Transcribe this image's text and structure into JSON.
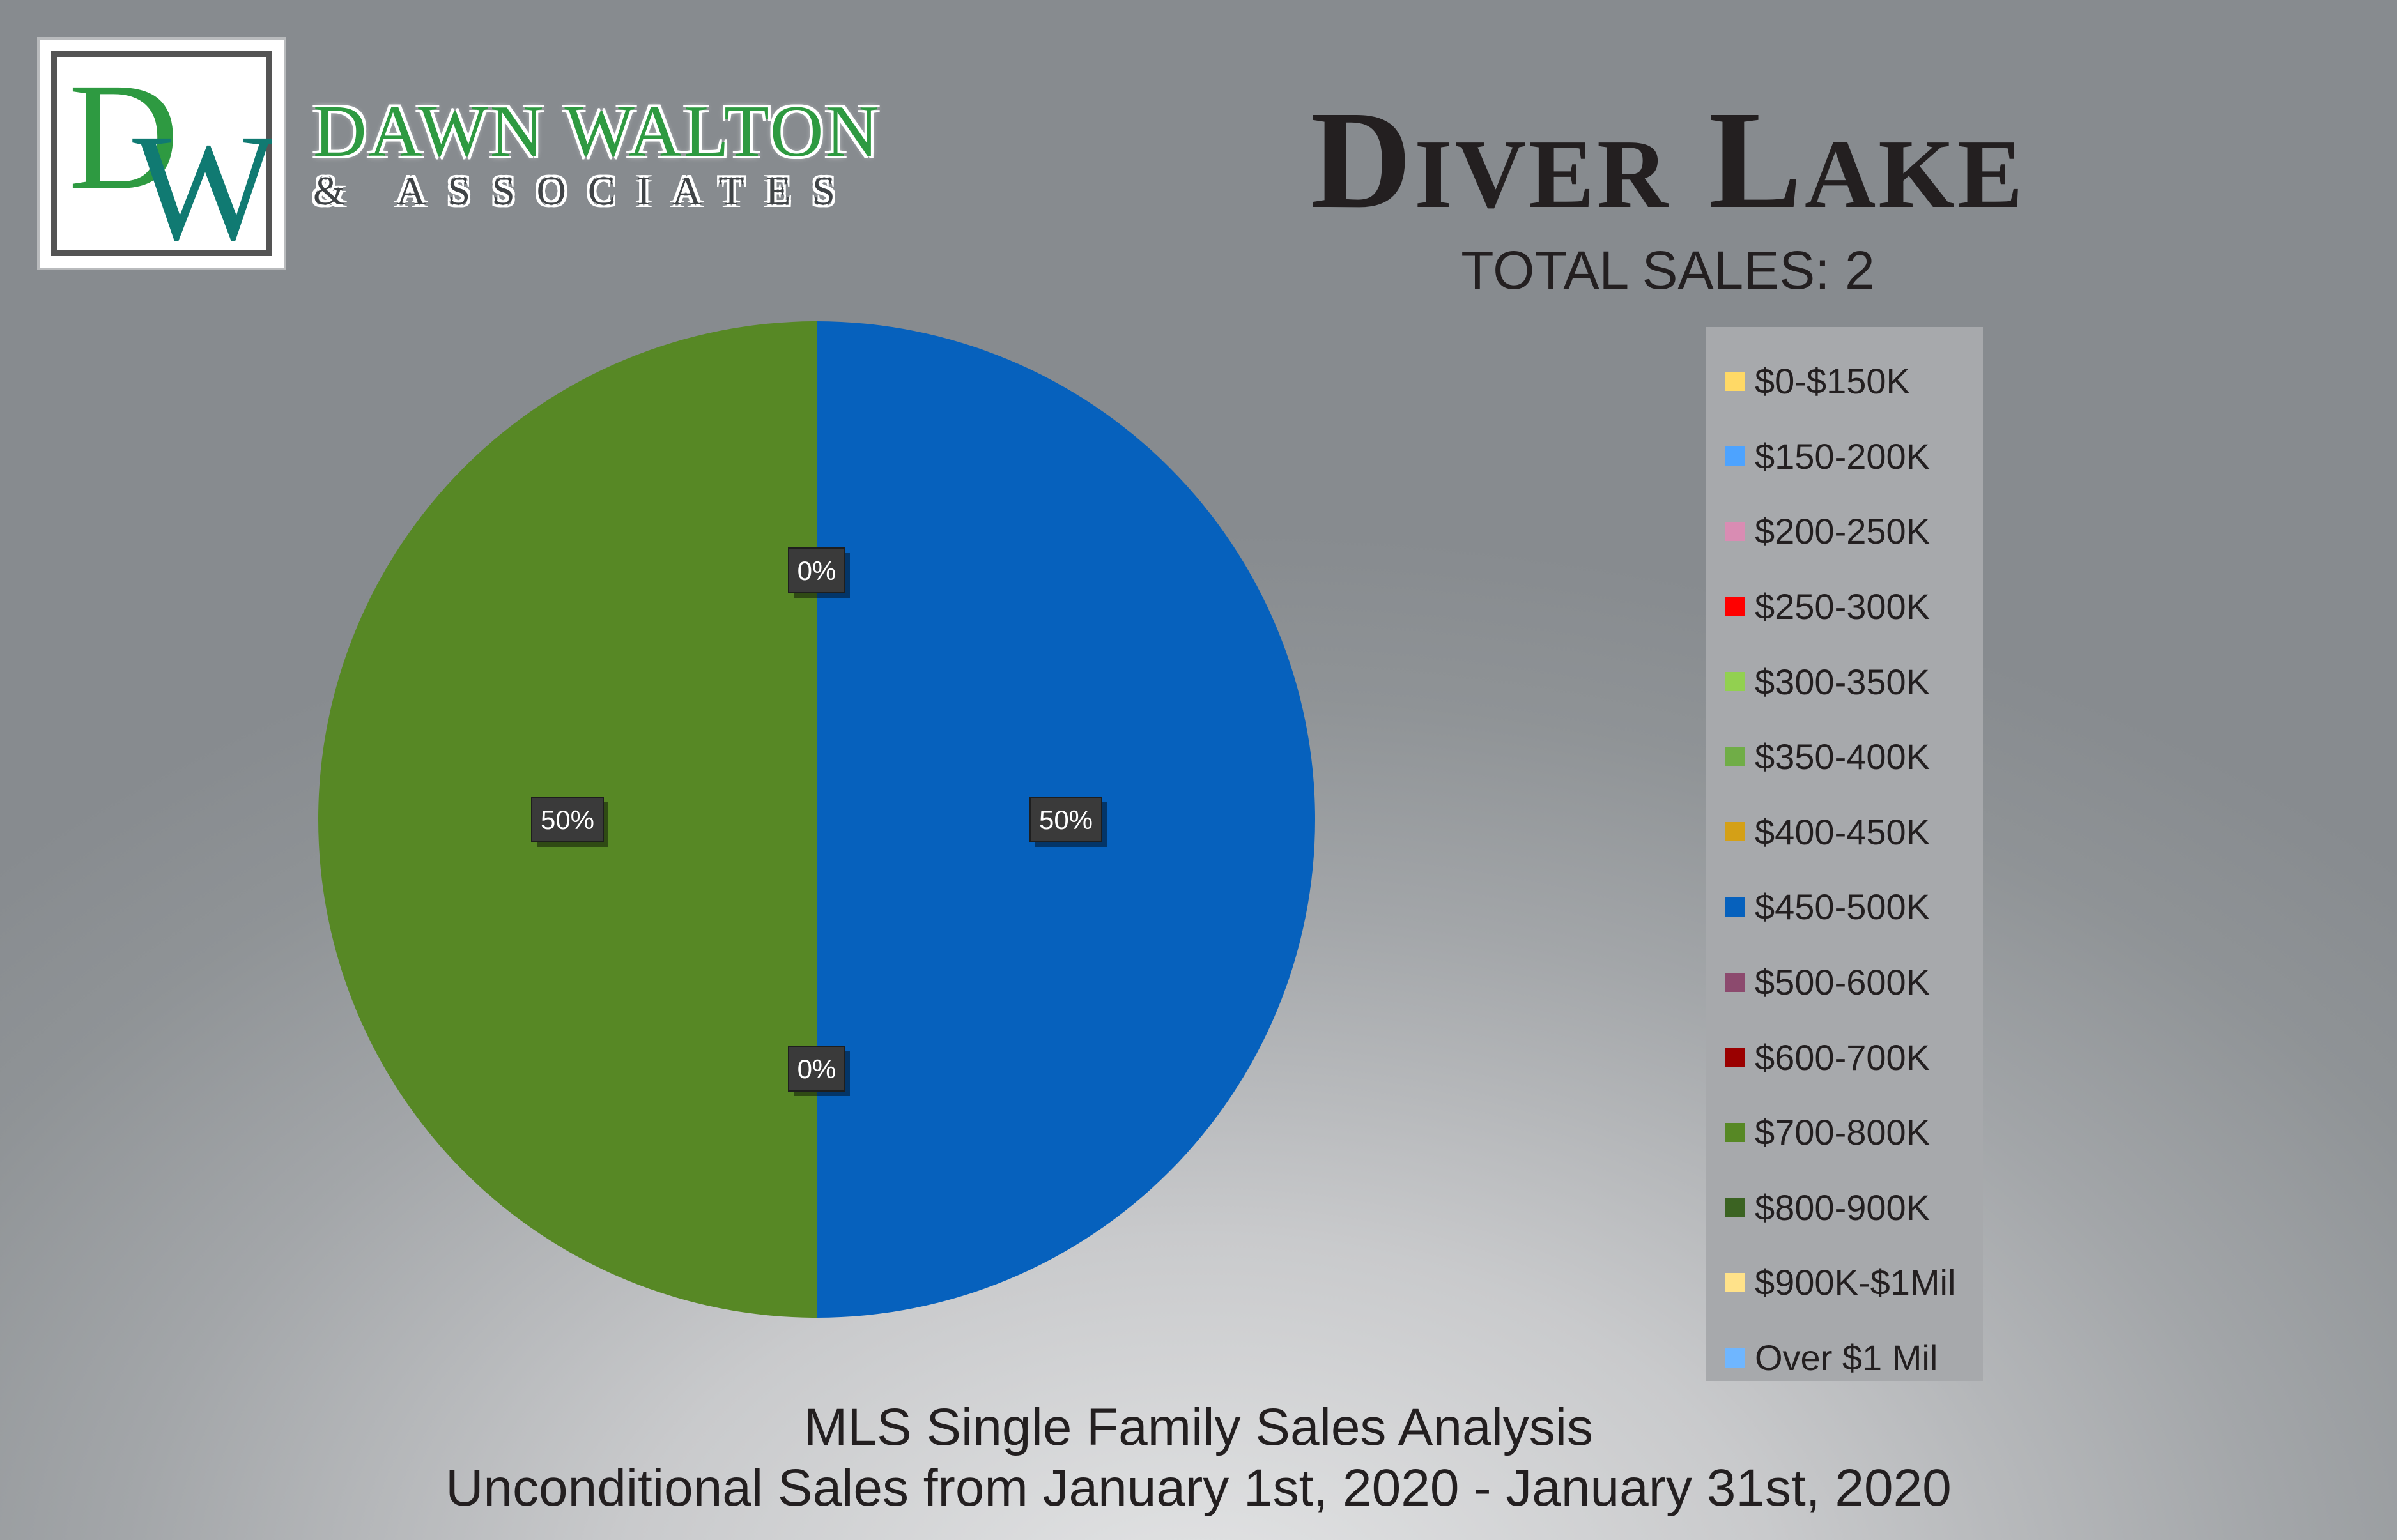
{
  "brand": {
    "monogram_d": "D",
    "monogram_w": "W",
    "name": "DAWN WALTON",
    "sub": "& ASSOCIATES",
    "colors": {
      "green": "#2e9a41",
      "teal": "#107a72"
    }
  },
  "title": "Diver Lake",
  "total_sales_label": "TOTAL SALES: 2",
  "chart_data": {
    "type": "pie",
    "title": "Diver Lake",
    "subtitle": "TOTAL SALES: 2",
    "slices": [
      {
        "label": "$0-$150K",
        "value": 0,
        "color": "#ffd966"
      },
      {
        "label": "$150-200K",
        "value": 0,
        "color": "#4da3ff"
      },
      {
        "label": "$200-250K",
        "value": 0,
        "color": "#d98cb3"
      },
      {
        "label": "$250-300K",
        "value": 0,
        "color": "#ff0000"
      },
      {
        "label": "$300-350K",
        "value": 0,
        "color": "#92d050"
      },
      {
        "label": "$350-400K",
        "value": 0,
        "color": "#70ad47"
      },
      {
        "label": "$400-450K",
        "value": 0,
        "color": "#d4a017"
      },
      {
        "label": "$450-500K",
        "value": 50,
        "color": "#0661bd"
      },
      {
        "label": "$500-600K",
        "value": 0,
        "color": "#8c4a6e"
      },
      {
        "label": "$600-700K",
        "value": 0,
        "color": "#9a0000"
      },
      {
        "label": "$700-800K",
        "value": 50,
        "color": "#578825"
      },
      {
        "label": "$800-900K",
        "value": 0,
        "color": "#3b6322"
      },
      {
        "label": "$900K-$1Mil",
        "value": 0,
        "color": "#ffe28a"
      },
      {
        "label": "Over $1 Mil",
        "value": 0,
        "color": "#6fb6ff"
      }
    ],
    "data_labels": [
      "50%",
      "50%",
      "0%",
      "0%"
    ],
    "legend_position": "right"
  },
  "footer": {
    "line1": "MLS Single Family Sales Analysis",
    "line2": "Unconditional Sales from January 1st, 2020 - January 31st, 2020"
  }
}
